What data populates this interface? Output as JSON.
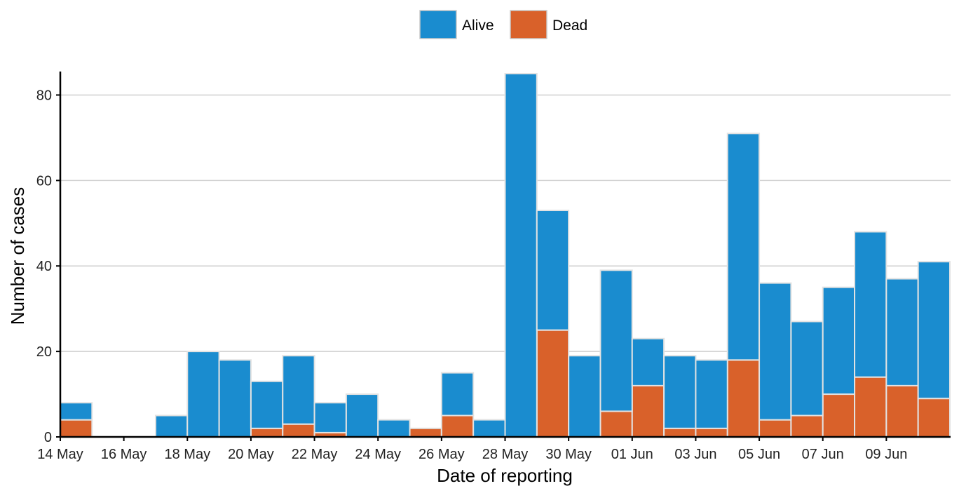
{
  "chart_data": {
    "type": "bar",
    "stacked": true,
    "title": "",
    "xlabel": "Date of reporting",
    "ylabel": "Number of cases",
    "ylim": [
      0,
      85
    ],
    "yticks": [
      0,
      20,
      40,
      60,
      80
    ],
    "grid": "horizontal",
    "legend_position": "top",
    "categories": [
      "14 May",
      "15 May",
      "16 May",
      "17 May",
      "18 May",
      "19 May",
      "20 May",
      "21 May",
      "22 May",
      "23 May",
      "24 May",
      "25 May",
      "26 May",
      "27 May",
      "28 May",
      "29 May",
      "30 May",
      "31 May",
      "01 Jun",
      "02 Jun",
      "03 Jun",
      "04 Jun",
      "05 Jun",
      "06 Jun",
      "07 Jun",
      "08 Jun",
      "09 Jun",
      "10 Jun"
    ],
    "xtick_labels": [
      "14 May",
      "16 May",
      "18 May",
      "20 May",
      "22 May",
      "24 May",
      "26 May",
      "28 May",
      "30 May",
      "01 Jun",
      "03 Jun",
      "05 Jun",
      "07 Jun",
      "09 Jun"
    ],
    "series": [
      {
        "name": "Dead",
        "color": "#d9612a",
        "values": [
          4,
          0,
          0,
          0,
          0,
          0,
          2,
          3,
          1,
          0,
          0,
          2,
          5,
          0,
          0,
          25,
          0,
          6,
          12,
          2,
          2,
          18,
          4,
          5,
          10,
          14,
          12,
          9
        ]
      },
      {
        "name": "Alive",
        "color": "#1a8ccf",
        "values": [
          4,
          0,
          0,
          5,
          20,
          18,
          11,
          16,
          7,
          10,
          4,
          0,
          10,
          4,
          85,
          28,
          19,
          33,
          11,
          17,
          16,
          53,
          32,
          22,
          25,
          34,
          25,
          32
        ]
      }
    ],
    "legend_order": [
      "Alive",
      "Dead"
    ]
  }
}
